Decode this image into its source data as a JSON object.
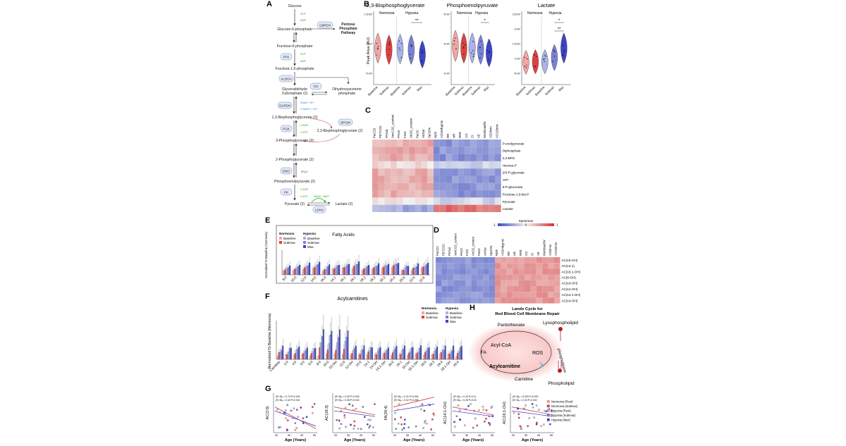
{
  "panels": {
    "A": "A",
    "B": "B",
    "C": "C",
    "E": "E",
    "F": "F",
    "G": "G",
    "H": "H",
    "D": "D"
  },
  "pathway": {
    "glucose": "Glucose",
    "g6p": "Glucose-6-phosphate",
    "g6pdh": "G6PDH",
    "ppp": [
      "Pentose",
      "Phosphate",
      "Pathway"
    ],
    "f6p": "Fructose-6-phosphate",
    "pfk": "PFK",
    "f16bp": "Fructose-1,6-phosphate",
    "aldoa": "ALDOA",
    "g3p": [
      "Glyceraldehyde",
      "3-phosphate (2)"
    ],
    "tpi": "TPI",
    "dhap": [
      "Dihydroxyacetone",
      "phosphate"
    ],
    "gapdh": "GAPDH",
    "nad": "2NAD⁺ 2Pi",
    "nadh": "2 NADH + 2H⁺",
    "bpg13": "1,3-Bisphosphoglycerate (2)",
    "bpgm": "BPGM",
    "pgk": "PGK",
    "bpg23": "2,3-Bisphosphoglycerate (2)",
    "pg3": "3-Phosphoglycerate (2)",
    "pg2": "2-Phosphoglycerate (2)",
    "eno": "ENO",
    "h2o": "2H₂O",
    "pep": "Phosphoenolpyruvate (2)",
    "pk": "PK",
    "pyruvate": "Pyruvate (2)",
    "lactate": "Lactate (2)",
    "ldha": "LDHA",
    "atp": "ATP",
    "adp": "ADP",
    "adp2": "2 ADP",
    "atp2": "2 ATP",
    "nadh_s": "NADH",
    "nadp_s": "NAD⁺"
  },
  "violins": {
    "titles": [
      "2,3-Bisphosphoglycerate",
      "Phosphoenolpyruvate",
      "Lactate"
    ],
    "normoxia": "Normoxia",
    "hypoxia": "Hypoxia",
    "ylabel": "Peak Area (AU)",
    "xcats": [
      "Baseline",
      "Submax",
      "Baseline",
      "Submax",
      "Max"
    ],
    "yticks": [
      [
        "1.5×10⁷",
        "1×10⁷",
        "5×10⁶"
      ],
      [
        "6×10⁶",
        "4×10⁶",
        "2×10⁶"
      ],
      [
        "2.5×10⁷",
        "2×10⁷",
        "1.5×10⁷",
        "1×10⁷",
        "5×10⁶"
      ]
    ],
    "sig": [
      [
        "**"
      ],
      [
        "*"
      ],
      [
        "*",
        "**"
      ]
    ],
    "colors": [
      "#f2a5a5",
      "#e04040",
      "#a9b2ea",
      "#7a80d8",
      "#3c44c8"
    ]
  },
  "heatmapC": {
    "cols": [
      "PaCO2",
      "PETCO2",
      "PAGal",
      "VenCO2_content",
      "PAO2",
      "FIO2",
      "ArtO2_content",
      "PaO2",
      "ArtSat",
      "SpO2%",
      "RER",
      "VO2mlkgmin",
      "RR",
      "HR",
      "RPE",
      "CO",
      "CI",
      "VE",
      "Workload/W",
      "VO2lmin",
      "VCO2lmin"
    ],
    "rows": [
      "P-enolpyruvate",
      "Diphosphate",
      "2,3-BPG",
      "Hexose-P",
      "2/3-P-glycerate",
      "ATP",
      "6-P-gluconate",
      "Fructose-1,6-bis-P",
      "Pyruvate",
      "Lactate"
    ],
    "legend_title": "Spearman",
    "legend_min": "-1",
    "legend_mid": "0",
    "legend_max": "1"
  },
  "heatmapD": {
    "cols": [
      "PaCO2",
      "PETCO2",
      "PAGal",
      "VenCO2_content",
      "PAO2",
      "FIO2",
      "ArtO2_content",
      "PaO2",
      "ArtSat",
      "SpO2%",
      "RER",
      "VO2mlkgmin",
      "RR",
      "HR",
      "RPE",
      "CO",
      "CI",
      "VE",
      "Workload/W",
      "VO2lmin",
      "VCO2lmin"
    ],
    "rows": [
      "AC(16-OH)",
      "AC(14:1)",
      "AC(16:1-OH)",
      "AC(8-OH)",
      "AC(10-OH)",
      "AC(12-OH)",
      "AC(14:1-OH)",
      "AC(14-OH)"
    ]
  },
  "barsE": {
    "title": "Fatty Acids",
    "ylabel": "Normalized To Baseline (Normoxia)",
    "legend": {
      "normoxia": "Normoxia",
      "hypoxia": "Hypoxia",
      "items": [
        "Baseline",
        "Submax",
        "Baseline",
        "Submax",
        "Max"
      ]
    },
    "categories": [
      "8:0",
      "10:0",
      "12:0",
      "14:0",
      "16:0",
      "14:1",
      "16:1",
      "18:1",
      "18:2",
      "18:3",
      "20:3",
      "20:4",
      "20:5",
      "22:5",
      "22:6"
    ]
  },
  "barsF": {
    "title": "Acylcarnitines",
    "ylabel": "Normalized To Baseline (Normoxia)",
    "categories": [
      "Carnitine",
      "2:0",
      "4:0",
      "5:0",
      "6:0",
      "8:0",
      "10:0",
      "10-OH",
      "12:0",
      "12-OH",
      "14:0",
      "14:1",
      "14-OH",
      "14:1-OH",
      "16:0",
      "16:1",
      "16-OH",
      "16:1-OH",
      "18:0",
      "18:3",
      "18:4",
      "18:1-OH",
      "20:4"
    ]
  },
  "lands": {
    "title": [
      "Lands Cycle for",
      "Red Blood Cell Membrane Repair"
    ],
    "pantothenate": "Pantothenate",
    "lysophospholipid": "Lysophospholipid",
    "acylcoa": "Acyl-CoA",
    "ros": "ROS",
    "phospholipase": "phospholipase",
    "fa": "FA",
    "acylcarnitine": "Acylcarnitine",
    "carnitine": "Carnitine",
    "phospholipid": "Phospholipid"
  },
  "scatterG": {
    "xlabel": "Age (Years)",
    "ylabels": [
      "AC(2:0)",
      "AC(18:3)",
      "FA(20:4)",
      "AC(14:1-OH)",
      "AC(16:1-OH)"
    ],
    "stats": [
      [
        "(R² B)ₙ = 0.74  P<0.001",
        "(R² B)ₙ = 0.62  P<0.001"
      ],
      [
        "(R² B)ₙ = 0.33  P=0.003",
        "(R² B)ₙ = 0.35  P=0.002"
      ],
      [
        "(R² B)ₙ = 0.41  P=0.004",
        "(R² B)ₙ = 0.32  P=0.006"
      ],
      [
        "(R² B)ₙ = 0.15  P=0.11",
        "(R² B)ₙ = 0.25  P=0.03"
      ],
      [
        "(R² B)ₙ = 0.029  P=0.020",
        "(R² B)ₙ = 0.33  P=0.002"
      ]
    ],
    "legend": [
      "Normoxia (Rest)",
      "Normoxia (Submax)",
      "Hypoxia (Rest)",
      "Hypoxia (Submax)",
      "Hypoxia (Max)"
    ],
    "xticks": [
      "20",
      "30",
      "40",
      "50"
    ]
  }
}
